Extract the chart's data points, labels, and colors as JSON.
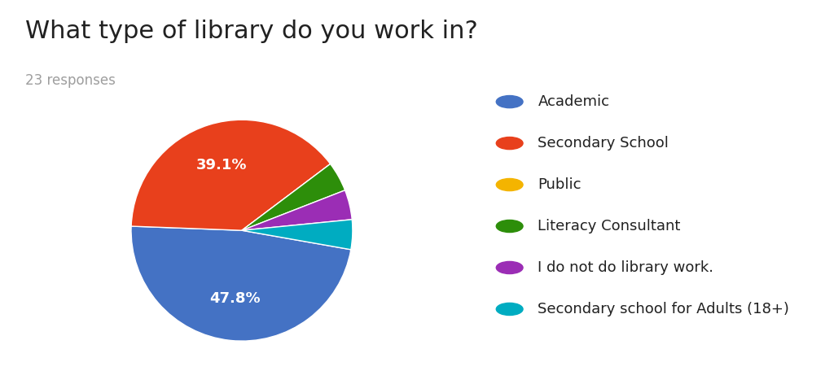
{
  "title": "What type of library do you work in?",
  "subtitle": "23 responses",
  "labels": [
    "Academic",
    "Secondary School",
    "Public",
    "Literacy Consultant",
    "I do not do library work.",
    "Secondary school for Adults (18+)"
  ],
  "counts": [
    11,
    9,
    0,
    1,
    1,
    1
  ],
  "colors": [
    "#4472C4",
    "#E8401C",
    "#F4B400",
    "#2D8E0A",
    "#9B2DB5",
    "#00ACC1"
  ],
  "background_color": "#ffffff",
  "title_fontsize": 22,
  "subtitle_fontsize": 12,
  "legend_fontsize": 13,
  "label_fontsize": 13,
  "startangle": -10,
  "pct_threshold": 8,
  "pctdistance": 0.62
}
